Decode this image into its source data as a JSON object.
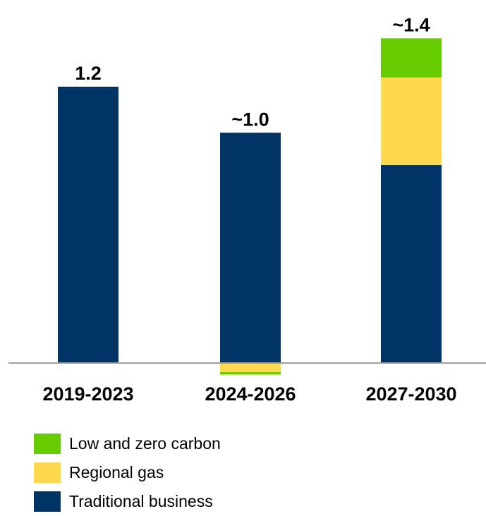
{
  "chart_data": {
    "type": "bar",
    "stacked": true,
    "categories": [
      "2019-2023",
      "2024-2026",
      "2027-2030"
    ],
    "totals": [
      "1.2",
      "~1.0",
      "~1.4"
    ],
    "series": [
      {
        "name": "Traditional business",
        "color": "#003366",
        "values": [
          1.2,
          1.0,
          0.86
        ]
      },
      {
        "name": "Regional gas",
        "color": "#FFD94D",
        "values": [
          0,
          -0.04,
          0.38
        ]
      },
      {
        "name": "Low and zero carbon",
        "color": "#66CC00",
        "values": [
          0,
          -0.01,
          0.17
        ]
      }
    ],
    "legend_order": [
      "Low and zero carbon",
      "Regional gas",
      "Traditional business"
    ],
    "legend_position": "bottom-left",
    "ylim": [
      -0.05,
      1.45
    ],
    "grid": false
  }
}
